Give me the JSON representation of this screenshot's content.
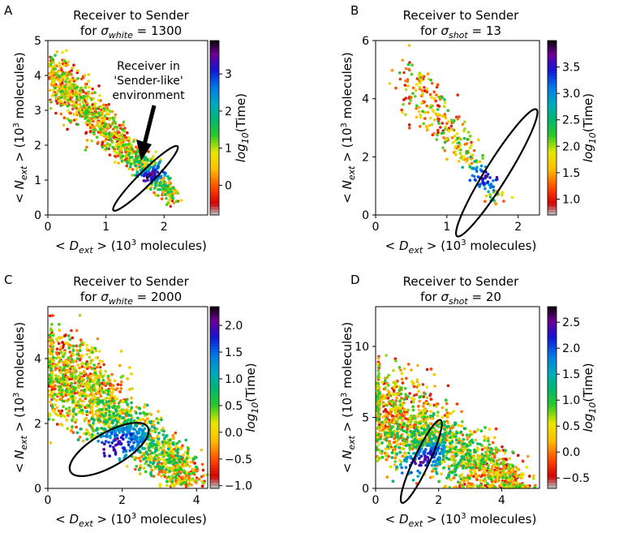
{
  "chart_data": [
    {
      "panel_label": "A",
      "type": "scatter",
      "title_line1": "Receiver to Sender",
      "title_prefix": "for ",
      "sigma_sub": "white",
      "title_value": " = 1300",
      "xlabel_prefix": "< ",
      "x_sub": "ext",
      "xlabel_suffix": " >  (10",
      "xlabel_sup": "3",
      "xlabel_end": " molecules)",
      "ylabel_prefix": "< ",
      "y_sub": "ext",
      "ylabel_suffix": " >  (10",
      "ylabel_sup": "3",
      "ylabel_end": " molecules)",
      "xlim": [
        0,
        2.75
      ],
      "ylim": [
        0,
        5
      ],
      "xticks": [
        "0",
        "1",
        "2"
      ],
      "xtick_values": [
        0,
        1,
        2
      ],
      "yticks": [
        "0",
        "1",
        "2",
        "3",
        "4",
        "5"
      ],
      "ytick_values": [
        0,
        1,
        2,
        3,
        4,
        5
      ],
      "colorbar_label": "log",
      "colorbar_label_sub": "10",
      "colorbar_label_end": "(Time)",
      "colorbar_range": [
        -0.8,
        3.9
      ],
      "colorbar_ticks": [
        "0",
        "1",
        "2",
        "3"
      ],
      "colorbar_tick_values": [
        0,
        1,
        2,
        3
      ],
      "ellipse": {
        "cx": 1.68,
        "cy": 1.05,
        "rx": 0.78,
        "ry": 0.2,
        "angle_deg": 45
      },
      "annotation": {
        "lines": [
          "Receiver in",
          "'Sender-like'",
          "environment"
        ]
      },
      "series_description": "dense band from (0.1, 4.5) down to (2.0, 0.6); blue/purple (late time) points concentrated inside ellipse",
      "n_points": 1100,
      "trend": {
        "x0": 0.1,
        "y0": 4.0,
        "x1": 2.15,
        "y1": 0.55,
        "spread_x": 0.12,
        "spread_y": 0.28
      }
    },
    {
      "panel_label": "B",
      "type": "scatter",
      "title_line1": "Receiver to Sender",
      "title_prefix": "for ",
      "sigma_sub": "shot",
      "title_value": " = 13",
      "xlabel_prefix": "< ",
      "x_sub": "ext",
      "xlabel_suffix": " >  (10",
      "xlabel_sup": "3",
      "xlabel_end": " molecules)",
      "ylabel_prefix": "< ",
      "y_sub": "ext",
      "ylabel_suffix": " >  (10",
      "ylabel_sup": "3",
      "ylabel_end": " molecules)",
      "xlim": [
        0,
        2.3
      ],
      "ylim": [
        0,
        6
      ],
      "xticks": [
        "0",
        "1",
        "2"
      ],
      "xtick_values": [
        0,
        1,
        2
      ],
      "yticks": [
        "0",
        "2",
        "4",
        "6"
      ],
      "ytick_values": [
        0,
        2,
        4,
        6
      ],
      "colorbar_label": "log",
      "colorbar_label_sub": "10",
      "colorbar_label_end": "(Time)",
      "colorbar_range": [
        0.7,
        4.0
      ],
      "colorbar_ticks": [
        "1.0",
        "1.5",
        "2.0",
        "2.5",
        "3.0",
        "3.5"
      ],
      "colorbar_tick_values": [
        1.0,
        1.5,
        2.0,
        2.5,
        3.0,
        3.5
      ],
      "ellipse": {
        "cx": 1.7,
        "cy": 1.45,
        "rx": 1.05,
        "ry": 0.38,
        "angle_deg": 58
      },
      "n_points": 320,
      "trend": {
        "x0": 0.5,
        "y0": 4.6,
        "x1": 1.75,
        "y1": 0.5,
        "spread_x": 0.12,
        "spread_y": 0.35
      }
    },
    {
      "panel_label": "C",
      "type": "scatter",
      "title_line1": "Receiver to Sender",
      "title_prefix": "for ",
      "sigma_sub": "white",
      "title_value": " = 2000",
      "xlabel_prefix": "< ",
      "x_sub": "ext",
      "xlabel_suffix": " >  (10",
      "xlabel_sup": "3",
      "xlabel_end": " molecules)",
      "ylabel_prefix": "< ",
      "y_sub": "ext",
      "ylabel_suffix": " >  (10",
      "ylabel_sup": "3",
      "ylabel_end": " molecules)",
      "xlim": [
        0,
        4.3
      ],
      "ylim": [
        0,
        5.6
      ],
      "xticks": [
        "0",
        "2",
        "4"
      ],
      "xtick_values": [
        0,
        2,
        4
      ],
      "yticks": [
        "0",
        "2",
        "4"
      ],
      "ytick_values": [
        0,
        2,
        4
      ],
      "colorbar_label": "log",
      "colorbar_label_sub": "10",
      "colorbar_label_end": "(Time)",
      "colorbar_range": [
        -1.05,
        2.35
      ],
      "colorbar_ticks": [
        "−1.0",
        "−0.5",
        "0.0",
        "0.5",
        "1.0",
        "1.5",
        "2.0"
      ],
      "colorbar_tick_values": [
        -1.0,
        -0.5,
        0.0,
        0.5,
        1.0,
        1.5,
        2.0
      ],
      "ellipse": {
        "cx": 1.65,
        "cy": 1.2,
        "rx": 1.2,
        "ry": 0.52,
        "angle_deg": 30
      },
      "n_points": 2600,
      "trend": {
        "x0": 0.1,
        "y0": 3.8,
        "x1": 3.9,
        "y1": 0.25,
        "spread_x": 0.35,
        "spread_y": 0.55
      }
    },
    {
      "panel_label": "D",
      "type": "scatter",
      "title_line1": "Receiver to Sender",
      "title_prefix": "for ",
      "sigma_sub": "shot",
      "title_value": " = 20",
      "xlabel_prefix": "< ",
      "x_sub": "ext",
      "xlabel_suffix": " >  (10",
      "xlabel_sup": "3",
      "xlabel_end": " molecules)",
      "ylabel_prefix": "< ",
      "y_sub": "ext",
      "ylabel_suffix": " >  (10",
      "ylabel_sup": "3",
      "ylabel_end": " molecules)",
      "xlim": [
        0,
        5.2
      ],
      "ylim": [
        0,
        12.8
      ],
      "xticks": [
        "0",
        "2",
        "4"
      ],
      "xtick_values": [
        0,
        2,
        4
      ],
      "yticks": [
        "0",
        "5",
        "10"
      ],
      "ytick_values": [
        0,
        5,
        10
      ],
      "colorbar_label": "log",
      "colorbar_label_sub": "10",
      "colorbar_label_end": "(Time)",
      "colorbar_range": [
        -0.7,
        2.8
      ],
      "colorbar_ticks": [
        "−0.5",
        "0.0",
        "0.5",
        "1.0",
        "1.5",
        "2.0",
        "2.5"
      ],
      "colorbar_tick_values": [
        -0.5,
        0.0,
        0.5,
        1.0,
        1.5,
        2.0,
        2.5
      ],
      "ellipse": {
        "cx": 1.45,
        "cy": 1.9,
        "rx": 1.45,
        "ry": 0.55,
        "angle_deg": 65
      },
      "n_points": 2600,
      "trend": {
        "x0": 0.05,
        "y0": 5.5,
        "x1": 4.5,
        "y1": 0.3,
        "spread_x": 0.45,
        "spread_y": 1.3
      }
    }
  ]
}
